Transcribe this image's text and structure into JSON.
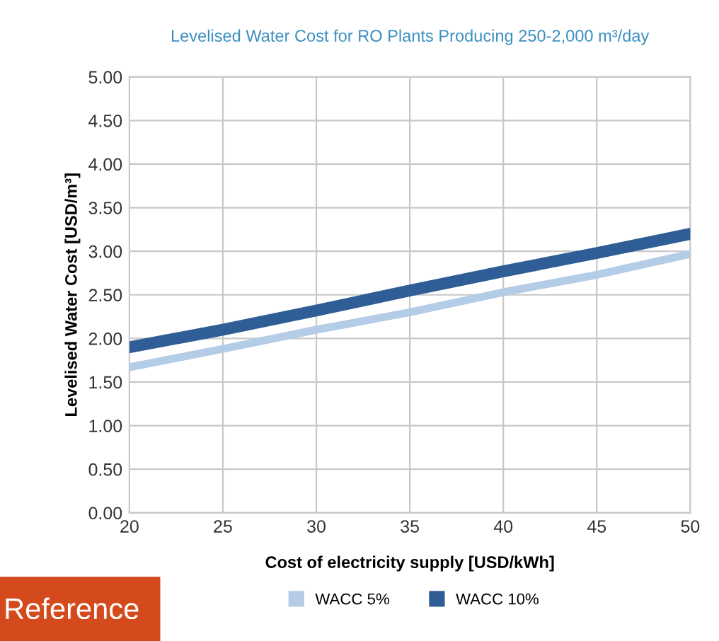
{
  "chart_data": {
    "type": "line",
    "title": "Levelised Water Cost for RO Plants Producing 250-2,000 m³/day",
    "xlabel": "Cost of electricity supply [USD/kWh]",
    "ylabel": "Levelised Water Cost [USD/m³]",
    "x": [
      20,
      25,
      30,
      35,
      40,
      45,
      50
    ],
    "series": [
      {
        "name": "WACC 5%",
        "color": "#b4cce6",
        "values": [
          1.67,
          1.88,
          2.1,
          2.3,
          2.53,
          2.73,
          2.97
        ]
      },
      {
        "name": "WACC 10%",
        "color": "#2f5d95",
        "values": [
          1.9,
          2.1,
          2.32,
          2.55,
          2.77,
          2.98,
          3.2
        ]
      }
    ],
    "xlim": [
      20,
      50
    ],
    "xticks": [
      20,
      25,
      30,
      35,
      40,
      45,
      50
    ],
    "ylim": [
      0,
      5
    ],
    "yticks": [
      {
        "value": 0,
        "label": "0.00"
      },
      {
        "value": 0.5,
        "label": "0.50"
      },
      {
        "value": 1,
        "label": "1.00"
      },
      {
        "value": 1.5,
        "label": "1.50"
      },
      {
        "value": 2,
        "label": "2.00"
      },
      {
        "value": 2.5,
        "label": "2.50"
      },
      {
        "value": 3,
        "label": "3.00"
      },
      {
        "value": 3.5,
        "label": "3.50"
      },
      {
        "value": 4,
        "label": "4.00"
      },
      {
        "value": 4.5,
        "label": "4.50"
      },
      {
        "value": 5,
        "label": "5.00"
      }
    ],
    "grid": true,
    "legend": "bottom",
    "marker": "none",
    "line_style": "solid",
    "annotations": [
      "Reference"
    ]
  }
}
